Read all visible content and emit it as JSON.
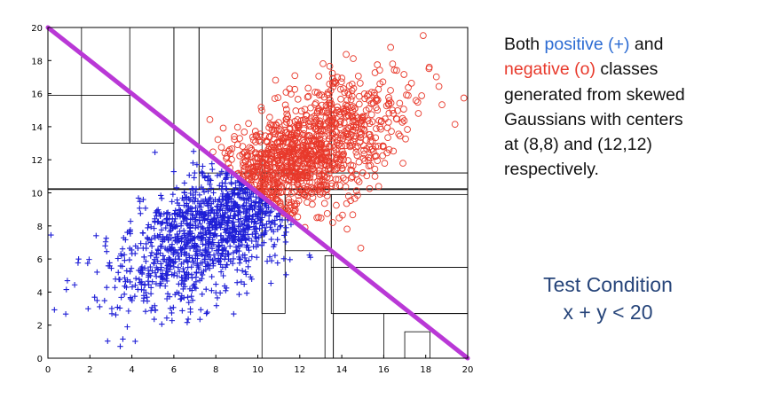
{
  "chart_data": {
    "type": "scatter",
    "title": "",
    "xlabel": "",
    "ylabel": "",
    "xlim": [
      0,
      20
    ],
    "ylim": [
      0,
      20
    ],
    "x_ticks": [
      "0",
      "2",
      "4",
      "6",
      "8",
      "10",
      "12",
      "14",
      "16",
      "18",
      "20"
    ],
    "y_ticks": [
      "0",
      "2",
      "4",
      "6",
      "8",
      "10",
      "12",
      "14",
      "16",
      "18",
      "20"
    ],
    "grid": false,
    "series": [
      {
        "marker": "+",
        "color": "#1f1fd6",
        "center": [
          8,
          8
        ]
      },
      {
        "marker": "o",
        "color": "#e8392b",
        "center": [
          12,
          12
        ]
      }
    ],
    "decision_line": {
      "x": [
        0,
        20
      ],
      "y": [
        20,
        0
      ],
      "color": "#b938d6"
    },
    "partition_boxes": [
      [
        0,
        10.2,
        0,
        20
      ],
      [
        0,
        20,
        10.2,
        10.25
      ],
      [
        1.6,
        3.9,
        13.0,
        15.9
      ],
      [
        0,
        1.6,
        15.9,
        20
      ],
      [
        3.9,
        6.0,
        13.0,
        20
      ],
      [
        6.0,
        7.2,
        10.2,
        20
      ],
      [
        7.2,
        13.5,
        11.2,
        20
      ],
      [
        13.5,
        20,
        11.2,
        20
      ],
      [
        10.2,
        20,
        10.2,
        11.2
      ],
      [
        10.2,
        11.3,
        2.7,
        9.9
      ],
      [
        11.3,
        13.5,
        6.5,
        9.9
      ],
      [
        13.5,
        20,
        5.5,
        9.9
      ],
      [
        13.5,
        20,
        2.7,
        5.5
      ],
      [
        13.2,
        13.6,
        0,
        6.2
      ],
      [
        13.6,
        20,
        0,
        2.7
      ],
      [
        16,
        20,
        0,
        2.7
      ],
      [
        17,
        18.2,
        0,
        1.6
      ]
    ]
  },
  "text": {
    "desc_line1_a": "Both ",
    "desc_positive": "positive (+)",
    "desc_line1_b": " and",
    "desc_negative": "negative (o)",
    "desc_line2_b": " classes",
    "desc_rest": [
      "generated from skewed",
      "Gaussians with centers",
      "at (8,8) and (12,12)",
      "respectively."
    ],
    "test_title": "Test Condition",
    "test_expr": "x + y < 20"
  },
  "colors": {
    "positive_text": "#2b6bd3",
    "negative_text": "#e8392b",
    "test_text": "#27457a"
  }
}
